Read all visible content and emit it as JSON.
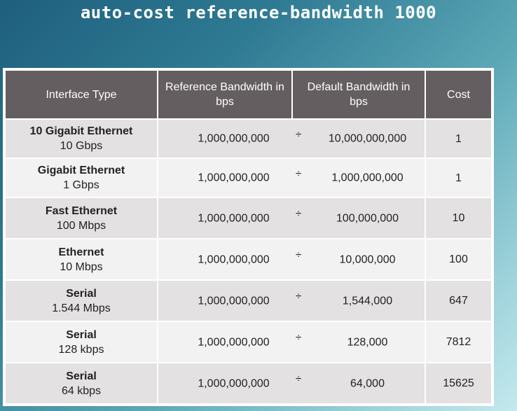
{
  "title": "auto-cost reference-bandwidth 1000",
  "table": {
    "headers": {
      "interface_type": "Interface Type",
      "reference_bandwidth": "Reference Bandwidth in bps",
      "default_bandwidth": "Default Bandwidth in bps",
      "cost": "Cost"
    },
    "divide_symbol": "÷",
    "rows": [
      {
        "type": "10 Gigabit Ethernet",
        "speed": "10 Gbps",
        "reference": "1,000,000,000",
        "default": "10,000,000,000",
        "cost": "1"
      },
      {
        "type": "Gigabit Ethernet",
        "speed": "1 Gbps",
        "reference": "1,000,000,000",
        "default": "1,000,000,000",
        "cost": "1"
      },
      {
        "type": "Fast Ethernet",
        "speed": "100 Mbps",
        "reference": "1,000,000,000",
        "default": "100,000,000",
        "cost": "10"
      },
      {
        "type": "Ethernet",
        "speed": "10 Mbps",
        "reference": "1,000,000,000",
        "default": "10,000,000",
        "cost": "100"
      },
      {
        "type": "Serial",
        "speed": "1.544 Mbps",
        "reference": "1,000,000,000",
        "default": "1,544,000",
        "cost": "647"
      },
      {
        "type": "Serial",
        "speed": "128 kbps",
        "reference": "1,000,000,000",
        "default": "128,000",
        "cost": "7812"
      },
      {
        "type": "Serial",
        "speed": "64 kbps",
        "reference": "1,000,000,000",
        "default": "64,000",
        "cost": "15625"
      }
    ]
  }
}
